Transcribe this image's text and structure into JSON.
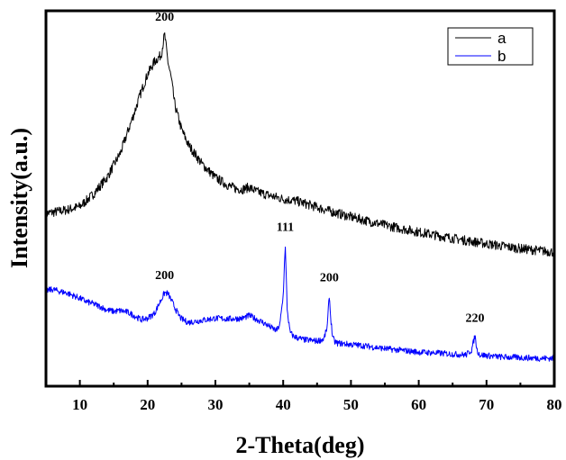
{
  "chart_data": {
    "type": "line",
    "xlabel": "2-Theta(deg)",
    "ylabel": "Intensity(a.u.)",
    "xlim": [
      5,
      80
    ],
    "xticks": [
      10,
      20,
      30,
      40,
      50,
      60,
      70,
      80
    ],
    "y_tick_labels": false,
    "grid": false,
    "legend_position": "top-right",
    "series": [
      {
        "name": "a",
        "color": "#000000",
        "x": [
          5,
          8,
          10,
          12,
          14,
          16,
          18,
          19,
          20,
          21,
          22,
          22.5,
          23,
          23.5,
          24,
          25,
          26,
          28,
          30,
          32,
          33,
          34,
          35,
          36,
          38,
          40,
          42,
          45,
          47,
          50,
          55,
          60,
          65,
          70,
          75,
          80
        ],
        "values": [
          210,
          215,
          220,
          238,
          262,
          298,
          355,
          385,
          412,
          430,
          440,
          470,
          430,
          405,
          368,
          332,
          310,
          282,
          262,
          250,
          246,
          245,
          248,
          242,
          236,
          231,
          228,
          219,
          213,
          205,
          193,
          183,
          174,
          166,
          159,
          154
        ]
      },
      {
        "name": "b",
        "color": "#0000ff",
        "x": [
          5,
          6,
          7,
          8,
          9,
          10,
          11,
          12,
          13,
          14,
          15,
          16,
          17,
          18,
          19,
          20,
          21,
          21.5,
          22,
          22.5,
          23,
          23.5,
          24,
          24.5,
          25,
          26,
          28,
          30,
          32,
          34,
          35,
          36,
          37,
          38,
          39,
          39.5,
          40,
          40.3,
          40.6,
          41,
          41.5,
          42,
          43,
          44,
          45,
          46,
          46.5,
          46.8,
          47,
          47.3,
          47.6,
          48,
          50,
          52,
          55,
          58,
          60,
          62,
          65,
          67,
          67.8,
          68.3,
          68.6,
          69,
          70,
          72,
          75,
          78,
          80
        ],
        "values": [
          98,
          100,
          97,
          95,
          91,
          87,
          82,
          79,
          75,
          70,
          68,
          69,
          67,
          62,
          56,
          58,
          65,
          75,
          85,
          95,
          94,
          84,
          74,
          64,
          57,
          52,
          55,
          58,
          57,
          58,
          62,
          57,
          52,
          46,
          40,
          48,
          90,
          165,
          70,
          38,
          32,
          30,
          27,
          26,
          25,
          28,
          45,
          92,
          60,
          30,
          24,
          22,
          20,
          18,
          14,
          11,
          9,
          8,
          6,
          5,
          12,
          33,
          12,
          5,
          4,
          2,
          1,
          0,
          0
        ]
      }
    ],
    "annotations": [
      {
        "text": "200",
        "x": 22.5,
        "series": "a"
      },
      {
        "text": "200",
        "x": 22.5,
        "series": "b"
      },
      {
        "text": "111",
        "x": 40.3,
        "series": "b"
      },
      {
        "text": "200",
        "x": 46.8,
        "series": "b"
      },
      {
        "text": "220",
        "x": 68.3,
        "series": "b"
      }
    ]
  }
}
